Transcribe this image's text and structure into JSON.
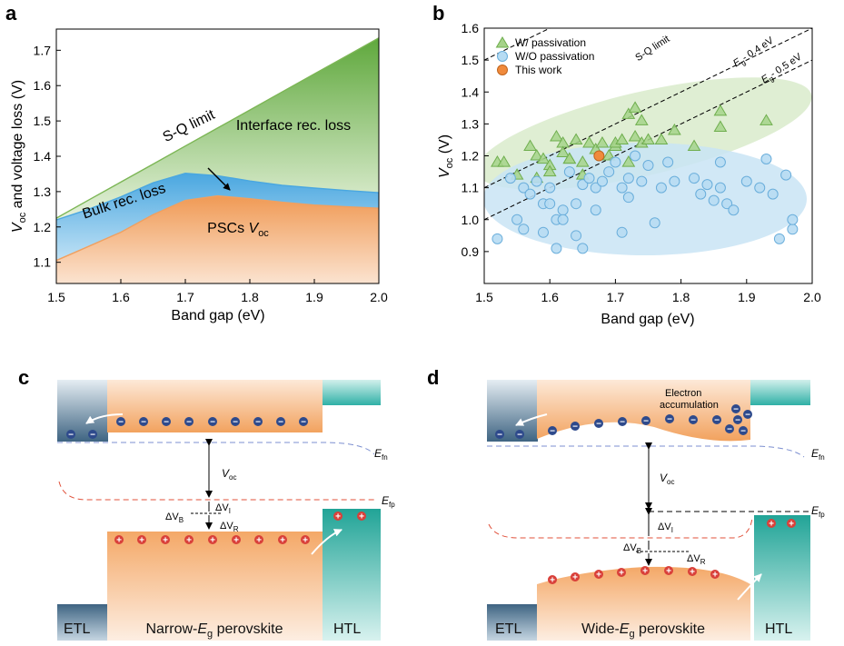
{
  "panels": {
    "a": {
      "letter": "a"
    },
    "b": {
      "letter": "b"
    },
    "c": {
      "letter": "c"
    },
    "d": {
      "letter": "d"
    }
  },
  "chart_data": [
    {
      "panel": "a",
      "type": "area",
      "xlabel": "Band gap (eV)",
      "ylabel": "V_oc and voltage loss (V)",
      "xlim": [
        1.5,
        2.0
      ],
      "ylim": [
        1.04,
        1.76
      ],
      "xticks": [
        "1.5",
        "1.6",
        "1.7",
        "1.8",
        "1.9",
        "2.0"
      ],
      "yticks": [
        "1.1",
        "1.2",
        "1.3",
        "1.4",
        "1.5",
        "1.6",
        "1.7"
      ],
      "annotations": [
        "S-Q limit",
        "Interface rec. loss",
        "Bulk rec. loss",
        "PSCs V_oc"
      ],
      "grid": false,
      "x": [
        1.5,
        1.55,
        1.6,
        1.65,
        1.7,
        1.75,
        1.8,
        1.85,
        1.9,
        1.95,
        2.0
      ],
      "series": [
        {
          "name": "S-Q limit",
          "color": "#7cb655",
          "values": [
            1.225,
            1.276,
            1.327,
            1.378,
            1.429,
            1.48,
            1.531,
            1.582,
            1.633,
            1.684,
            1.735
          ]
        },
        {
          "name": "Bulk rec. loss",
          "color": "#4aa7e0",
          "values": [
            1.22,
            1.25,
            1.285,
            1.325,
            1.352,
            1.345,
            1.33,
            1.318,
            1.31,
            1.303,
            1.297
          ]
        },
        {
          "name": "PSCs V_oc",
          "color": "#f0a060",
          "values": [
            1.105,
            1.145,
            1.185,
            1.235,
            1.275,
            1.288,
            1.28,
            1.27,
            1.262,
            1.257,
            1.253
          ]
        }
      ]
    },
    {
      "panel": "b",
      "type": "scatter",
      "xlabel": "Band gap (eV)",
      "ylabel": "V_oc (V)",
      "xlim": [
        1.5,
        2.0
      ],
      "ylim": [
        0.8,
        1.6
      ],
      "xticks": [
        "1.5",
        "1.6",
        "1.7",
        "1.8",
        "1.9",
        "2.0"
      ],
      "yticks": [
        "0.9",
        "1.0",
        "1.1",
        "1.2",
        "1.3",
        "1.4",
        "1.5",
        "1.6"
      ],
      "grid": false,
      "legend_position": "top-left",
      "reference_lines": [
        {
          "label": "S-Q limit",
          "offset": 0
        },
        {
          "label": "E_g - 0.4 eV",
          "offset": 0.4
        },
        {
          "label": "E_g - 0.5 eV",
          "offset": 0.5
        }
      ],
      "series": [
        {
          "name": "W/ passivation",
          "marker": "triangle",
          "color": "#a6d38a",
          "x": [
            1.52,
            1.53,
            1.55,
            1.57,
            1.58,
            1.58,
            1.59,
            1.6,
            1.6,
            1.61,
            1.62,
            1.62,
            1.63,
            1.63,
            1.64,
            1.65,
            1.65,
            1.66,
            1.67,
            1.68,
            1.69,
            1.7,
            1.7,
            1.71,
            1.72,
            1.72,
            1.73,
            1.73,
            1.74,
            1.74,
            1.75,
            1.77,
            1.79,
            1.82,
            1.86,
            1.86,
            1.93
          ],
          "y": [
            1.18,
            1.18,
            1.14,
            1.23,
            1.2,
            1.13,
            1.19,
            1.17,
            1.15,
            1.26,
            1.24,
            1.21,
            1.19,
            1.19,
            1.25,
            1.18,
            1.14,
            1.24,
            1.22,
            1.24,
            1.2,
            1.23,
            1.24,
            1.25,
            1.33,
            1.18,
            1.26,
            1.35,
            1.31,
            1.24,
            1.25,
            1.25,
            1.28,
            1.23,
            1.34,
            1.29,
            1.31
          ]
        },
        {
          "name": "W/O passivation",
          "marker": "circle",
          "color": "#b7dcf3",
          "x": [
            1.52,
            1.54,
            1.55,
            1.56,
            1.56,
            1.57,
            1.58,
            1.59,
            1.59,
            1.6,
            1.6,
            1.61,
            1.61,
            1.62,
            1.62,
            1.63,
            1.64,
            1.64,
            1.65,
            1.65,
            1.66,
            1.67,
            1.67,
            1.68,
            1.69,
            1.7,
            1.71,
            1.71,
            1.72,
            1.72,
            1.73,
            1.74,
            1.75,
            1.76,
            1.77,
            1.78,
            1.79,
            1.82,
            1.83,
            1.84,
            1.85,
            1.86,
            1.86,
            1.87,
            1.88,
            1.9,
            1.92,
            1.93,
            1.94,
            1.95,
            1.96,
            1.97,
            1.97
          ],
          "y": [
            0.94,
            1.13,
            1.0,
            1.1,
            0.97,
            1.08,
            1.12,
            1.05,
            0.96,
            1.1,
            1.05,
            1.0,
            0.91,
            1.03,
            1.0,
            1.15,
            1.05,
            0.95,
            1.11,
            0.91,
            1.13,
            1.1,
            1.03,
            1.12,
            1.15,
            1.18,
            1.1,
            0.96,
            1.07,
            1.13,
            1.2,
            1.12,
            1.17,
            0.99,
            1.1,
            1.18,
            1.12,
            1.13,
            1.08,
            1.11,
            1.06,
            1.1,
            1.18,
            1.05,
            1.03,
            1.12,
            1.1,
            1.19,
            1.08,
            0.94,
            1.14,
            0.97,
            1.0
          ]
        },
        {
          "name": "This work",
          "marker": "circle",
          "color": "#f08a3c",
          "x": [
            1.675
          ],
          "y": [
            1.2
          ]
        }
      ]
    }
  ],
  "diagram_c": {
    "etl": "ETL",
    "material_pre": "Narrow-",
    "material_sym": "E",
    "material_sub": "g",
    "material_post": " perovskite",
    "htl": "HTL",
    "efn_main": "E",
    "efn_sub": "fn",
    "efp_main": "E",
    "efp_sub": "fp",
    "voc_main": "V",
    "voc_sub": "oc",
    "dvi_main": "ΔV",
    "dvi_sub": "I",
    "dvb_main": "ΔV",
    "dvb_sub": "B",
    "dvr_main": "ΔV",
    "dvr_sub": "R",
    "electron_symbol": "−",
    "hole_symbol": "+"
  },
  "diagram_d": {
    "etl": "ETL",
    "material_pre": "Wide-",
    "material_sym": "E",
    "material_sub": "g",
    "material_post": " perovskite",
    "htl": "HTL",
    "annotation_line1": "Electron",
    "annotation_line2": "accumulation",
    "efn_main": "E",
    "efn_sub": "fn",
    "efp_main": "E",
    "efp_sub": "fp",
    "voc_main": "V",
    "voc_sub": "oc",
    "dvi_main": "ΔV",
    "dvi_sub": "I",
    "dvb_main": "ΔV",
    "dvb_sub": "B",
    "dvr_main": "ΔV",
    "dvr_sub": "R"
  },
  "colors": {
    "perovskite": "#f4a867",
    "etl": "#3e6482",
    "htl": "#2fb0a6",
    "electron": "#2e4a8c",
    "hole": "#d9403a",
    "efn_line": "#7c8fd0",
    "efp_line": "#e0503a"
  }
}
